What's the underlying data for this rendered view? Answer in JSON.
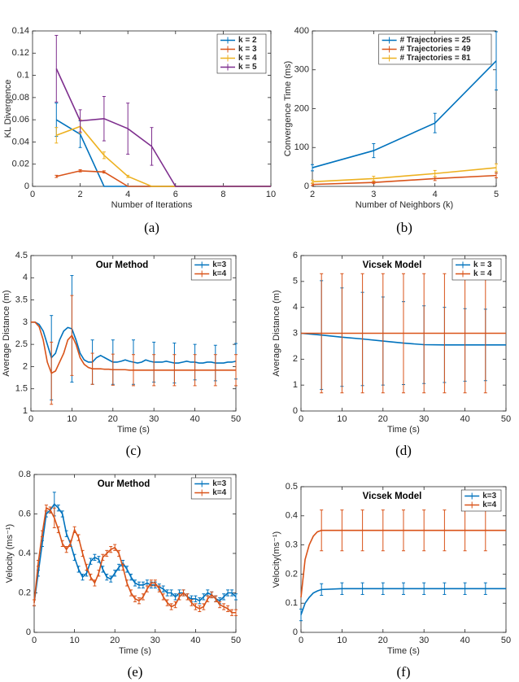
{
  "chart_data": [
    {
      "type": "line",
      "caption": "(a)",
      "xlabel": "Number of Iterations",
      "ylabel": "KL Divergence",
      "x": [
        1,
        2,
        3,
        4,
        5,
        6,
        7,
        8,
        9,
        10
      ],
      "xlim": [
        0,
        10
      ],
      "xticks": [
        0,
        2,
        4,
        6,
        8,
        10
      ],
      "ylim": [
        0,
        0.14
      ],
      "yticks": [
        0,
        0.02,
        0.04,
        0.06,
        0.08,
        0.1,
        0.12,
        0.14
      ],
      "legend": "upper right",
      "series": [
        {
          "name": "k = 2",
          "color": "#0072bd",
          "values": [
            0.06,
            0.047,
            0,
            0,
            0,
            0,
            0,
            0,
            0,
            0
          ],
          "errors": [
            0.015,
            0.012,
            null,
            null,
            null,
            null,
            null,
            null,
            null,
            null
          ]
        },
        {
          "name": "k = 3",
          "color": "#d95319",
          "values": [
            0.009,
            0.014,
            0.013,
            0,
            0,
            0,
            0,
            0,
            0,
            0
          ],
          "errors": [
            0.001,
            0.001,
            0.001,
            null,
            null,
            null,
            null,
            null,
            null,
            null
          ]
        },
        {
          "name": "k = 4",
          "color": "#edb120",
          "values": [
            0.046,
            0.054,
            0.028,
            0.009,
            0,
            0,
            0,
            0,
            0,
            0
          ],
          "errors": [
            0.007,
            0.006,
            0.003,
            0.001,
            null,
            null,
            null,
            null,
            null,
            null
          ]
        },
        {
          "name": "k = 5",
          "color": "#7e2f8e",
          "values": [
            0.106,
            0.059,
            0.061,
            0.052,
            0.036,
            0,
            0,
            0,
            0,
            0
          ],
          "errors": [
            0.03,
            0.01,
            0.02,
            0.023,
            0.017,
            null,
            null,
            null,
            null,
            null
          ]
        }
      ]
    },
    {
      "type": "line",
      "caption": "(b)",
      "xlabel": "Number of Neighbors (k)",
      "ylabel": "Convergence Time (ms)",
      "x": [
        2,
        3,
        4,
        5
      ],
      "xlim": [
        2,
        5
      ],
      "xticks": [
        2,
        3,
        4,
        5
      ],
      "ylim": [
        0,
        400
      ],
      "yticks": [
        0,
        100,
        200,
        300,
        400
      ],
      "legend": "upper right",
      "series": [
        {
          "name": "# Trajectories = 25",
          "color": "#0072bd",
          "values": [
            48,
            92,
            163,
            323
          ],
          "errors": [
            8,
            18,
            25,
            75
          ]
        },
        {
          "name": "# Trajectories = 49",
          "color": "#d95319",
          "values": [
            5,
            10,
            20,
            28
          ],
          "errors": [
            3,
            3,
            5,
            6
          ]
        },
        {
          "name": "# Trajectories = 81",
          "color": "#edb120",
          "values": [
            12,
            20,
            33,
            48
          ],
          "errors": [
            4,
            6,
            8,
            10
          ]
        }
      ]
    },
    {
      "type": "line",
      "caption": "(c)",
      "title": "Our Method",
      "xlabel": "Time (s)",
      "ylabel": "Average Distance (m)",
      "x": [
        0,
        1,
        2,
        3,
        4,
        5,
        6,
        7,
        8,
        9,
        10,
        11,
        12,
        13,
        14,
        15,
        16,
        17,
        18,
        19,
        20,
        21,
        22,
        23,
        24,
        25,
        26,
        27,
        28,
        29,
        30,
        31,
        32,
        33,
        34,
        35,
        36,
        37,
        38,
        39,
        40,
        41,
        42,
        43,
        44,
        45,
        46,
        47,
        48,
        49,
        50
      ],
      "xlim": [
        0,
        50
      ],
      "xticks": [
        0,
        10,
        20,
        30,
        40,
        50
      ],
      "ylim": [
        1,
        4.5
      ],
      "yticks": [
        1,
        1.5,
        2,
        2.5,
        3,
        3.5,
        4,
        4.5
      ],
      "legend": "upper right",
      "series": [
        {
          "name": "k=3",
          "color": "#0072bd",
          "values": [
            3.0,
            3.0,
            2.95,
            2.8,
            2.5,
            2.2,
            2.3,
            2.6,
            2.8,
            2.88,
            2.85,
            2.6,
            2.3,
            2.15,
            2.1,
            2.1,
            2.2,
            2.25,
            2.2,
            2.15,
            2.1,
            2.1,
            2.12,
            2.15,
            2.12,
            2.1,
            2.08,
            2.1,
            2.15,
            2.12,
            2.1,
            2.1,
            2.1,
            2.12,
            2.1,
            2.08,
            2.08,
            2.1,
            2.12,
            2.1,
            2.1,
            2.08,
            2.08,
            2.1,
            2.1,
            2.08,
            2.08,
            2.08,
            2.1,
            2.1,
            2.12
          ],
          "errors": [
            null,
            null,
            null,
            null,
            null,
            0.95,
            null,
            null,
            null,
            null,
            1.2,
            null,
            null,
            null,
            null,
            0.5,
            null,
            null,
            null,
            null,
            0.5,
            null,
            null,
            null,
            null,
            0.5,
            null,
            null,
            null,
            null,
            0.45,
            null,
            null,
            null,
            null,
            0.45,
            null,
            null,
            null,
            null,
            0.4,
            null,
            null,
            null,
            null,
            0.4,
            null,
            null,
            null,
            null,
            0.4
          ]
        },
        {
          "name": "k=4",
          "color": "#d95319",
          "values": [
            3.0,
            3.0,
            2.9,
            2.6,
            2.1,
            1.85,
            1.9,
            2.1,
            2.3,
            2.6,
            2.7,
            2.5,
            2.2,
            2.05,
            1.98,
            1.95,
            1.95,
            1.95,
            1.94,
            1.94,
            1.93,
            1.93,
            1.93,
            1.93,
            1.92,
            1.92,
            1.92,
            1.92,
            1.92,
            1.92,
            1.92,
            1.92,
            1.92,
            1.92,
            1.92,
            1.92,
            1.92,
            1.92,
            1.92,
            1.92,
            1.92,
            1.92,
            1.92,
            1.92,
            1.92,
            1.92,
            1.92,
            1.92,
            1.92,
            1.92,
            1.92
          ],
          "errors": [
            null,
            null,
            null,
            null,
            null,
            0.7,
            null,
            null,
            null,
            null,
            0.9,
            null,
            null,
            null,
            null,
            0.35,
            null,
            null,
            null,
            null,
            0.35,
            null,
            null,
            null,
            null,
            0.35,
            null,
            null,
            null,
            null,
            0.35,
            null,
            null,
            null,
            null,
            0.35,
            null,
            null,
            null,
            null,
            0.35,
            null,
            null,
            null,
            null,
            0.35,
            null,
            null,
            null,
            null,
            0.35
          ]
        }
      ]
    },
    {
      "type": "line",
      "caption": "(d)",
      "title": "Vicsek Model",
      "xlabel": "Time (s)",
      "ylabel": "Average Distance (m)",
      "x": [
        0,
        5,
        10,
        15,
        20,
        25,
        30,
        35,
        40,
        45,
        50
      ],
      "xlim": [
        0,
        50
      ],
      "xticks": [
        0,
        10,
        20,
        30,
        40,
        50
      ],
      "ylim": [
        0,
        6
      ],
      "yticks": [
        0,
        1,
        2,
        3,
        4,
        5,
        6
      ],
      "legend": "upper right",
      "series": [
        {
          "name": "k = 3",
          "color": "#0072bd",
          "values": [
            3.0,
            2.93,
            2.85,
            2.78,
            2.7,
            2.62,
            2.56,
            2.55,
            2.55,
            2.55,
            2.55
          ],
          "errors": [
            null,
            2.1,
            1.9,
            1.8,
            1.7,
            1.6,
            1.5,
            1.45,
            1.4,
            1.38,
            null
          ]
        },
        {
          "name": "k = 4",
          "color": "#d95319",
          "values": [
            3.0,
            3.0,
            3.0,
            3.0,
            3.0,
            3.0,
            3.0,
            3.0,
            3.0,
            3.0,
            3.0
          ],
          "errors": [
            null,
            2.3,
            2.3,
            2.3,
            2.3,
            2.3,
            2.3,
            2.3,
            2.3,
            2.3,
            null
          ]
        }
      ]
    },
    {
      "type": "line",
      "caption": "(e)",
      "title": "Our Method",
      "xlabel": "Time (s)",
      "ylabel": "Velocity (ms⁻¹)",
      "x": [
        0,
        1,
        2,
        3,
        4,
        5,
        6,
        7,
        8,
        9,
        10,
        11,
        12,
        13,
        14,
        15,
        16,
        17,
        18,
        19,
        20,
        21,
        22,
        23,
        24,
        25,
        26,
        27,
        28,
        29,
        30,
        31,
        32,
        33,
        34,
        35,
        36,
        37,
        38,
        39,
        40,
        41,
        42,
        43,
        44,
        45,
        46,
        47,
        48,
        49,
        50
      ],
      "xlim": [
        0,
        50
      ],
      "xticks": [
        0,
        10,
        20,
        30,
        40,
        50
      ],
      "ylim": [
        0,
        0.8
      ],
      "yticks": [
        0,
        0.2,
        0.4,
        0.6,
        0.8
      ],
      "legend": "upper right",
      "series": [
        {
          "name": "k=3",
          "color": "#0072bd",
          "values": [
            0.15,
            0.3,
            0.45,
            0.6,
            0.62,
            0.65,
            0.63,
            0.6,
            0.5,
            0.45,
            0.38,
            0.32,
            0.28,
            0.3,
            0.36,
            0.38,
            0.37,
            0.32,
            0.28,
            0.27,
            0.3,
            0.33,
            0.35,
            0.32,
            0.28,
            0.25,
            0.24,
            0.24,
            0.25,
            0.24,
            0.24,
            0.23,
            0.22,
            0.2,
            0.2,
            0.18,
            0.2,
            0.2,
            0.18,
            0.17,
            0.17,
            0.16,
            0.18,
            0.2,
            0.19,
            0.17,
            0.16,
            0.18,
            0.2,
            0.2,
            0.18
          ],
          "errors": [
            0.015,
            0.015,
            0.015,
            0.015,
            0.015,
            0.06,
            0.015,
            0.015,
            0.015,
            0.015,
            0.015,
            0.015,
            0.015,
            0.015,
            0.015,
            0.015,
            0.015,
            0.015,
            0.015,
            0.015,
            0.015,
            0.015,
            0.015,
            0.015,
            0.015,
            0.015,
            0.015,
            0.015,
            0.015,
            0.015,
            0.015,
            0.015,
            0.015,
            0.015,
            0.015,
            0.015,
            0.015,
            0.015,
            0.015,
            0.015,
            0.015,
            0.015,
            0.015,
            0.015,
            0.015,
            0.015,
            0.015,
            0.015,
            0.015,
            0.015,
            0.015
          ]
        },
        {
          "name": "k=4",
          "color": "#d95319",
          "values": [
            0.15,
            0.35,
            0.5,
            0.63,
            0.62,
            0.58,
            0.52,
            0.45,
            0.42,
            0.45,
            0.52,
            0.48,
            0.4,
            0.33,
            0.28,
            0.25,
            0.3,
            0.38,
            0.4,
            0.42,
            0.43,
            0.4,
            0.33,
            0.25,
            0.2,
            0.17,
            0.16,
            0.18,
            0.22,
            0.25,
            0.25,
            0.22,
            0.18,
            0.15,
            0.13,
            0.14,
            0.18,
            0.2,
            0.18,
            0.15,
            0.13,
            0.12,
            0.13,
            0.17,
            0.19,
            0.17,
            0.14,
            0.13,
            0.12,
            0.1,
            0.1
          ],
          "errors": [
            0.015,
            0.015,
            0.015,
            0.015,
            0.015,
            0.05,
            0.015,
            0.015,
            0.015,
            0.015,
            0.015,
            0.015,
            0.015,
            0.015,
            0.015,
            0.015,
            0.015,
            0.015,
            0.015,
            0.015,
            0.015,
            0.015,
            0.015,
            0.015,
            0.015,
            0.015,
            0.015,
            0.015,
            0.015,
            0.015,
            0.015,
            0.015,
            0.015,
            0.015,
            0.015,
            0.015,
            0.015,
            0.015,
            0.015,
            0.015,
            0.015,
            0.015,
            0.015,
            0.015,
            0.015,
            0.015,
            0.015,
            0.015,
            0.015,
            0.015,
            0.015
          ]
        }
      ]
    },
    {
      "type": "line",
      "caption": "(f)",
      "title": "Vicsek Model",
      "xlabel": "Time (s)",
      "ylabel": "Velocity(ms⁻¹)",
      "x": [
        0,
        1,
        2,
        3,
        4,
        5,
        10,
        15,
        20,
        25,
        30,
        35,
        40,
        45,
        50
      ],
      "xlim": [
        0,
        50
      ],
      "xticks": [
        0,
        10,
        20,
        30,
        40,
        50
      ],
      "ylim": [
        0,
        0.5
      ],
      "yticks": [
        0,
        0.1,
        0.2,
        0.3,
        0.4,
        0.5
      ],
      "legend": "upper right",
      "series": [
        {
          "name": "k=3",
          "color": "#0072bd",
          "values": [
            0.06,
            0.1,
            0.12,
            0.135,
            0.142,
            0.147,
            0.15,
            0.15,
            0.15,
            0.15,
            0.15,
            0.15,
            0.15,
            0.15,
            0.15
          ],
          "errors": [
            0.02,
            null,
            null,
            null,
            null,
            0.02,
            0.02,
            0.02,
            0.02,
            0.02,
            0.02,
            0.02,
            0.02,
            0.02,
            null
          ]
        },
        {
          "name": "k=4",
          "color": "#d95319",
          "values": [
            0.12,
            0.25,
            0.3,
            0.33,
            0.345,
            0.35,
            0.35,
            0.35,
            0.35,
            0.35,
            0.35,
            0.35,
            0.35,
            0.35,
            0.35
          ],
          "errors": [
            null,
            null,
            null,
            null,
            null,
            0.07,
            0.07,
            0.07,
            0.07,
            0.07,
            0.07,
            0.07,
            0.07,
            0.07,
            null
          ]
        }
      ]
    }
  ]
}
